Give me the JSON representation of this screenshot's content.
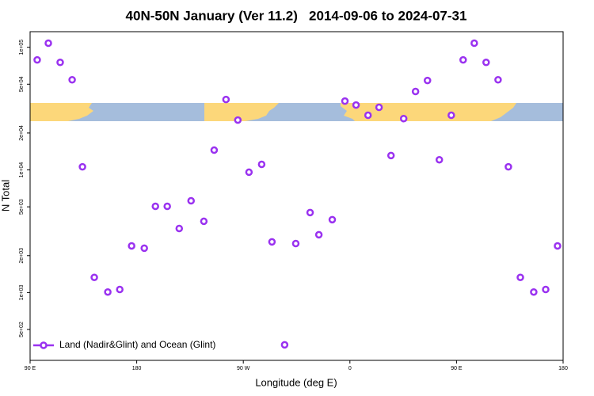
{
  "chart_data": {
    "type": "scatter",
    "title": "40N-50N January (Ver 11.2)   2014-09-06 to 2024-07-31",
    "x_label": "Longitude (deg E)",
    "y_label": "N Total",
    "log_y": true,
    "legend_position": "bottom-left",
    "xlim": [
      90,
      540
    ],
    "xticks": [
      {
        "value": 90,
        "label": "90 E"
      },
      {
        "value": 180,
        "label": "180"
      },
      {
        "value": 270,
        "label": "90 W"
      },
      {
        "value": 360,
        "label": "0"
      },
      {
        "value": 450,
        "label": "90 E"
      },
      {
        "value": 540,
        "label": "180"
      }
    ],
    "ylim": [
      280,
      134000
    ],
    "yticks": [
      {
        "value": 500,
        "label": "5e+02"
      },
      {
        "value": 1000,
        "label": "1e+03"
      },
      {
        "value": 2000,
        "label": "2e+03"
      },
      {
        "value": 5000,
        "label": "5e+03"
      },
      {
        "value": 10000,
        "label": "1e+04"
      },
      {
        "value": 20000,
        "label": "2e+04"
      },
      {
        "value": 50000,
        "label": "5e+04"
      },
      {
        "value": 100000,
        "label": "1e+05"
      }
    ],
    "series": [
      {
        "name": "Land (Nadir&Glint) and Ocean (Glint)",
        "color": "#9a32f0",
        "x": [
          96.0,
          105.4,
          115.4,
          125.5,
          134.2,
          144.2,
          155.6,
          165.7,
          175.7,
          186.4,
          195.8,
          205.8,
          215.9,
          225.9,
          236.7,
          245.4,
          255.4,
          265.4,
          274.8,
          285.5,
          294.2,
          304.9,
          314.3,
          326.4,
          333.8,
          345.1,
          355.8,
          365.2,
          375.3,
          384.6,
          394.7,
          405.4,
          415.4,
          425.5,
          435.5,
          445.6,
          455.6,
          465.0,
          475.0,
          485.1,
          493.8,
          503.9,
          515.2,
          525.3,
          535.3
        ],
        "values": [
          78900,
          108000,
          75300,
          54300,
          10600,
          1330,
          1010,
          1060,
          2400,
          2300,
          5050,
          5050,
          3330,
          5600,
          3810,
          14500,
          37500,
          25500,
          9580,
          11100,
          2590,
          375,
          2510,
          4490,
          2960,
          3930,
          36400,
          33800,
          27900,
          32400,
          13100,
          26200,
          43600,
          53600,
          12100,
          27900,
          78900,
          108000,
          75300,
          54300,
          10600,
          1330,
          1010,
          1060,
          2400
        ]
      }
    ]
  }
}
